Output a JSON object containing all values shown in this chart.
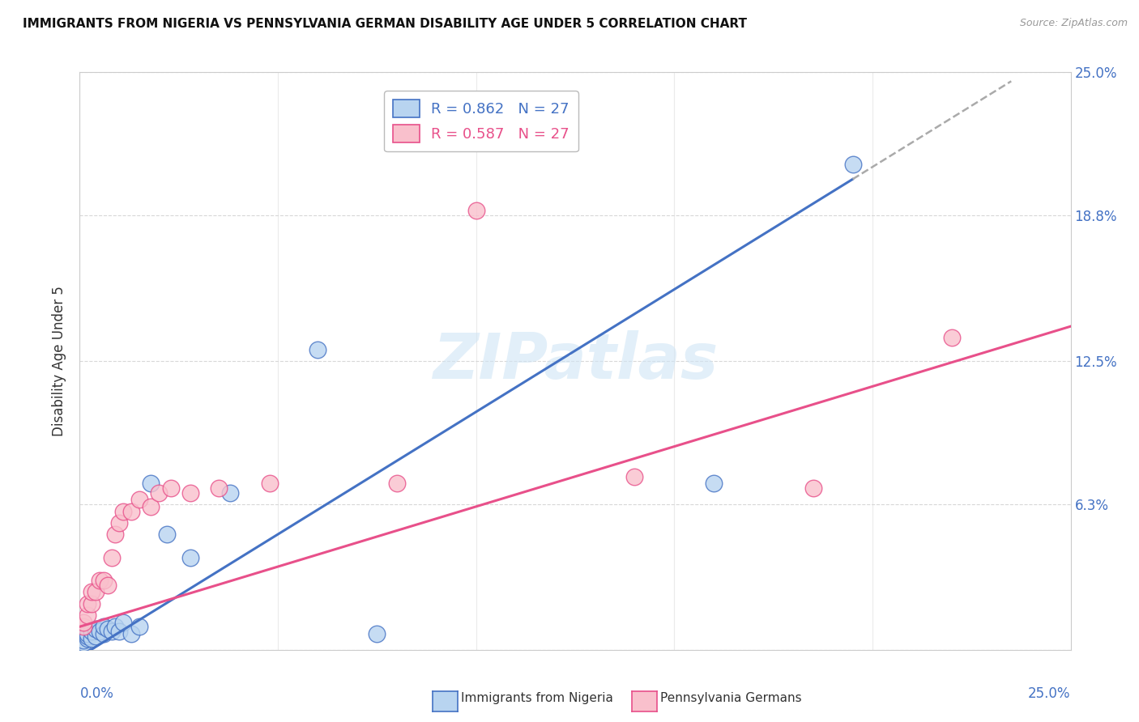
{
  "title": "IMMIGRANTS FROM NIGERIA VS PENNSYLVANIA GERMAN DISABILITY AGE UNDER 5 CORRELATION CHART",
  "source": "Source: ZipAtlas.com",
  "ylabel": "Disability Age Under 5",
  "xlim": [
    0.0,
    0.25
  ],
  "ylim": [
    0.0,
    0.25
  ],
  "nigeria_R": 0.862,
  "nigeria_N": 27,
  "pagerman_R": 0.587,
  "pagerman_N": 27,
  "nigeria_scatter_color": "#b8d4f0",
  "pagerman_scatter_color": "#f9c0cc",
  "nigeria_line_color": "#4472c4",
  "pagerman_line_color": "#e8508a",
  "watermark": "ZIPatlas",
  "nigeria_x": [
    0.001,
    0.001,
    0.002,
    0.002,
    0.002,
    0.003,
    0.003,
    0.004,
    0.004,
    0.005,
    0.006,
    0.006,
    0.007,
    0.008,
    0.009,
    0.01,
    0.011,
    0.013,
    0.015,
    0.018,
    0.022,
    0.028,
    0.038,
    0.06,
    0.075,
    0.16,
    0.195
  ],
  "nigeria_y": [
    0.003,
    0.004,
    0.005,
    0.006,
    0.007,
    0.005,
    0.008,
    0.006,
    0.009,
    0.008,
    0.007,
    0.01,
    0.009,
    0.008,
    0.01,
    0.008,
    0.012,
    0.007,
    0.01,
    0.072,
    0.05,
    0.04,
    0.068,
    0.13,
    0.007,
    0.072,
    0.21
  ],
  "pagerman_x": [
    0.001,
    0.001,
    0.002,
    0.002,
    0.003,
    0.003,
    0.004,
    0.005,
    0.006,
    0.007,
    0.008,
    0.009,
    0.01,
    0.011,
    0.013,
    0.015,
    0.018,
    0.02,
    0.023,
    0.028,
    0.035,
    0.048,
    0.08,
    0.1,
    0.14,
    0.185,
    0.22
  ],
  "pagerman_y": [
    0.01,
    0.012,
    0.015,
    0.02,
    0.02,
    0.025,
    0.025,
    0.03,
    0.03,
    0.028,
    0.04,
    0.05,
    0.055,
    0.06,
    0.06,
    0.065,
    0.062,
    0.068,
    0.07,
    0.068,
    0.07,
    0.072,
    0.072,
    0.19,
    0.075,
    0.07,
    0.135
  ],
  "background_color": "#ffffff",
  "grid_color": "#d8d8d8",
  "nigeria_line_slope": 1.06,
  "nigeria_line_intercept": -0.003,
  "pagerman_line_slope": 0.52,
  "pagerman_line_intercept": 0.01
}
